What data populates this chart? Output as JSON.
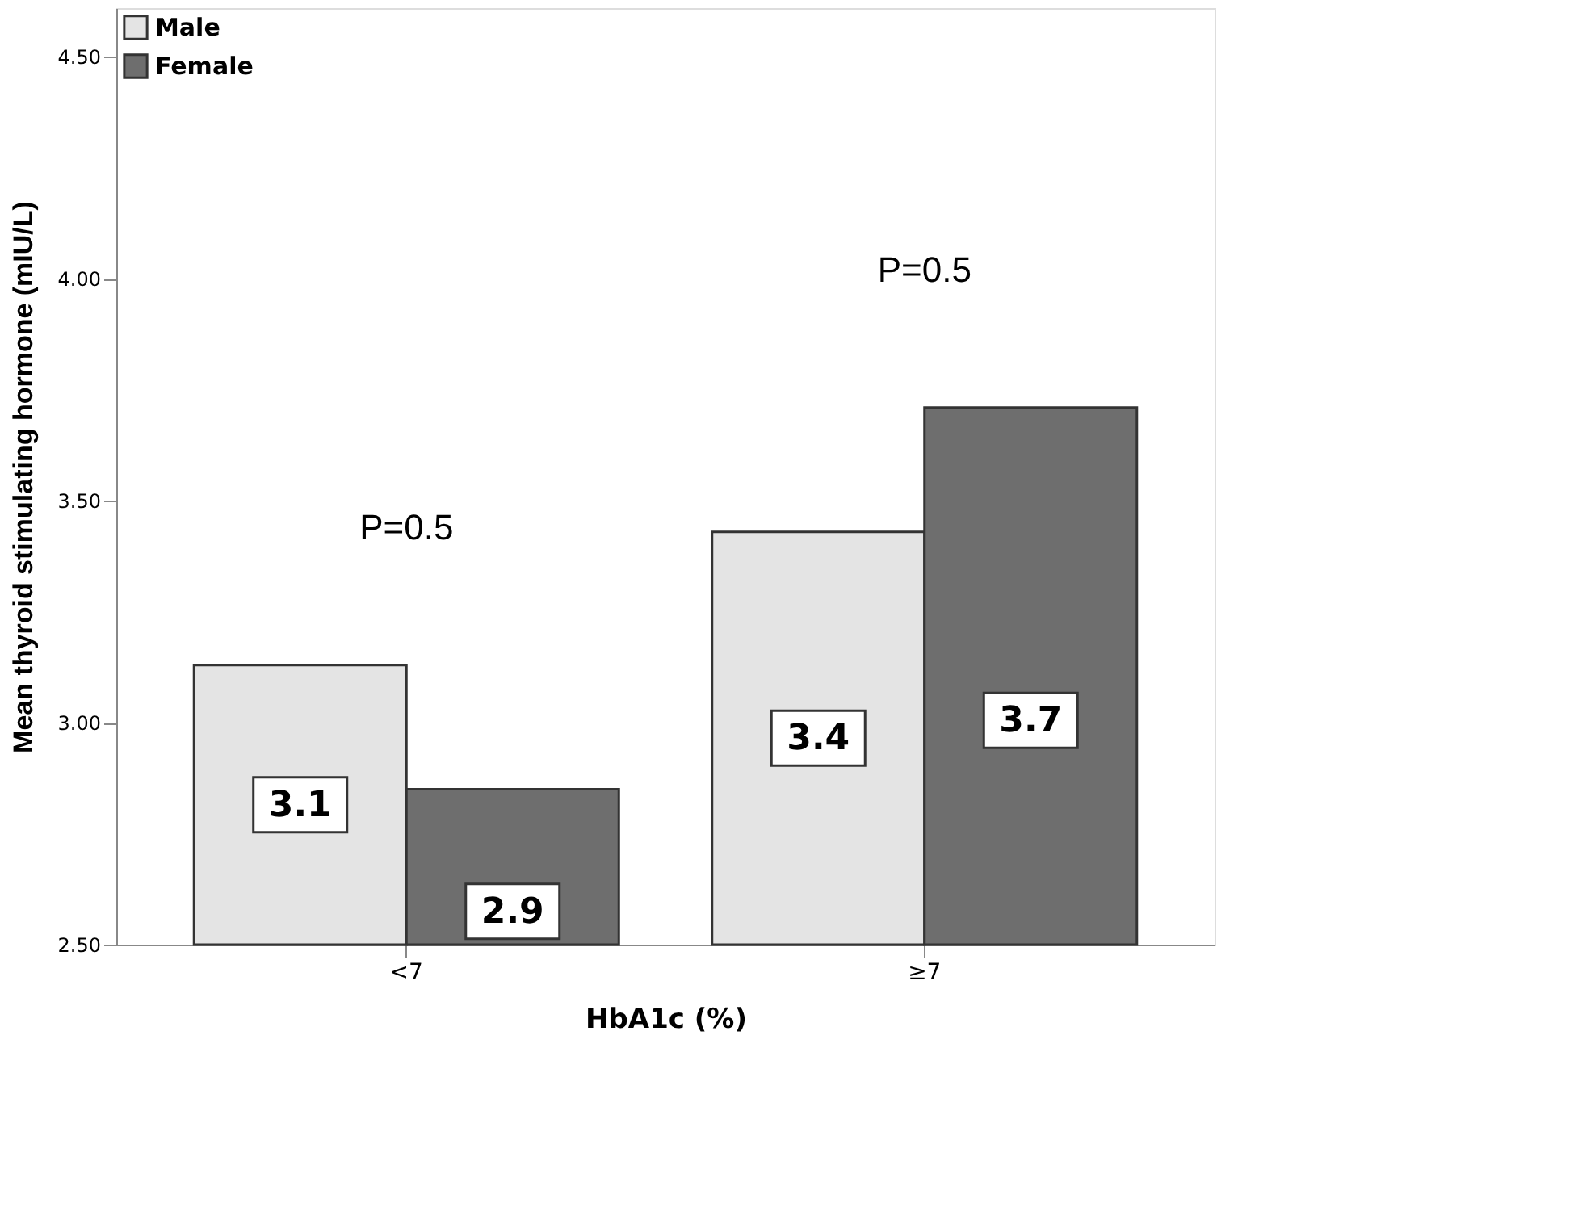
{
  "chart_data": {
    "type": "bar",
    "xlabel": "HbA1c (%)",
    "ylabel": "Mean thyroid stimulating hormone (mIU/L)",
    "categories": [
      "<7",
      "≥7"
    ],
    "series": [
      {
        "name": "Male",
        "color": "#e4e4e4",
        "values": [
          3.13,
          3.43
        ],
        "value_labels": [
          "3.1",
          "3.4"
        ]
      },
      {
        "name": "Female",
        "color": "#6e6e6e",
        "values": [
          2.85,
          3.71
        ],
        "value_labels": [
          "2.9",
          "3.7"
        ]
      }
    ],
    "ylim": [
      2.5,
      4.61
    ],
    "yticks": [
      {
        "value": 2.5,
        "label": "2.50"
      },
      {
        "value": 3.0,
        "label": "3.00"
      },
      {
        "value": 3.5,
        "label": "3.50"
      },
      {
        "value": 4.0,
        "label": "4.00"
      },
      {
        "value": 4.5,
        "label": "4.50"
      }
    ],
    "annotations": [
      "P=0.5",
      "P=0.5"
    ],
    "legend": "top left",
    "grid": false
  }
}
